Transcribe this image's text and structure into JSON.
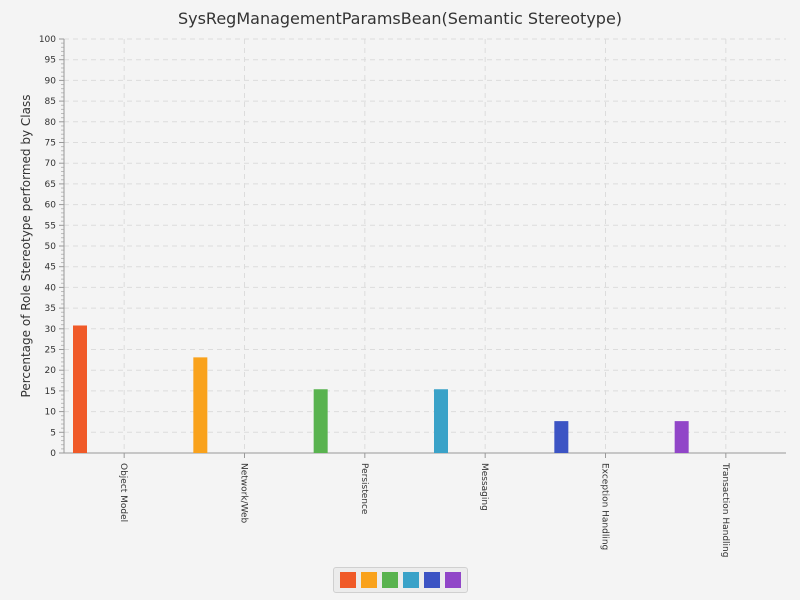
{
  "chart_data": {
    "type": "bar",
    "title": "SysRegManagementParamsBean(Semantic Stereotype)",
    "xlabel": "",
    "ylabel": "Percentage of Role Stereotype performed by Class",
    "ylim": [
      0,
      100
    ],
    "ytick_step": 5,
    "yticks": [
      "0",
      "5",
      "10",
      "15",
      "20",
      "25",
      "30",
      "35",
      "40",
      "45",
      "50",
      "55",
      "60",
      "65",
      "70",
      "75",
      "80",
      "85",
      "90",
      "95",
      "100"
    ],
    "grid": true,
    "legend_position": "bottom-center",
    "categories": [
      "Object Model",
      "Network/Web",
      "Persistence",
      "Messaging",
      "Exception Handling",
      "Transaction Handling"
    ],
    "values": [
      30.8,
      23.1,
      15.4,
      15.4,
      7.7,
      7.7
    ],
    "colors": [
      "#f05a28",
      "#f9a21c",
      "#59b34f",
      "#3aa2c8",
      "#3c54c4",
      "#9146c8"
    ]
  }
}
